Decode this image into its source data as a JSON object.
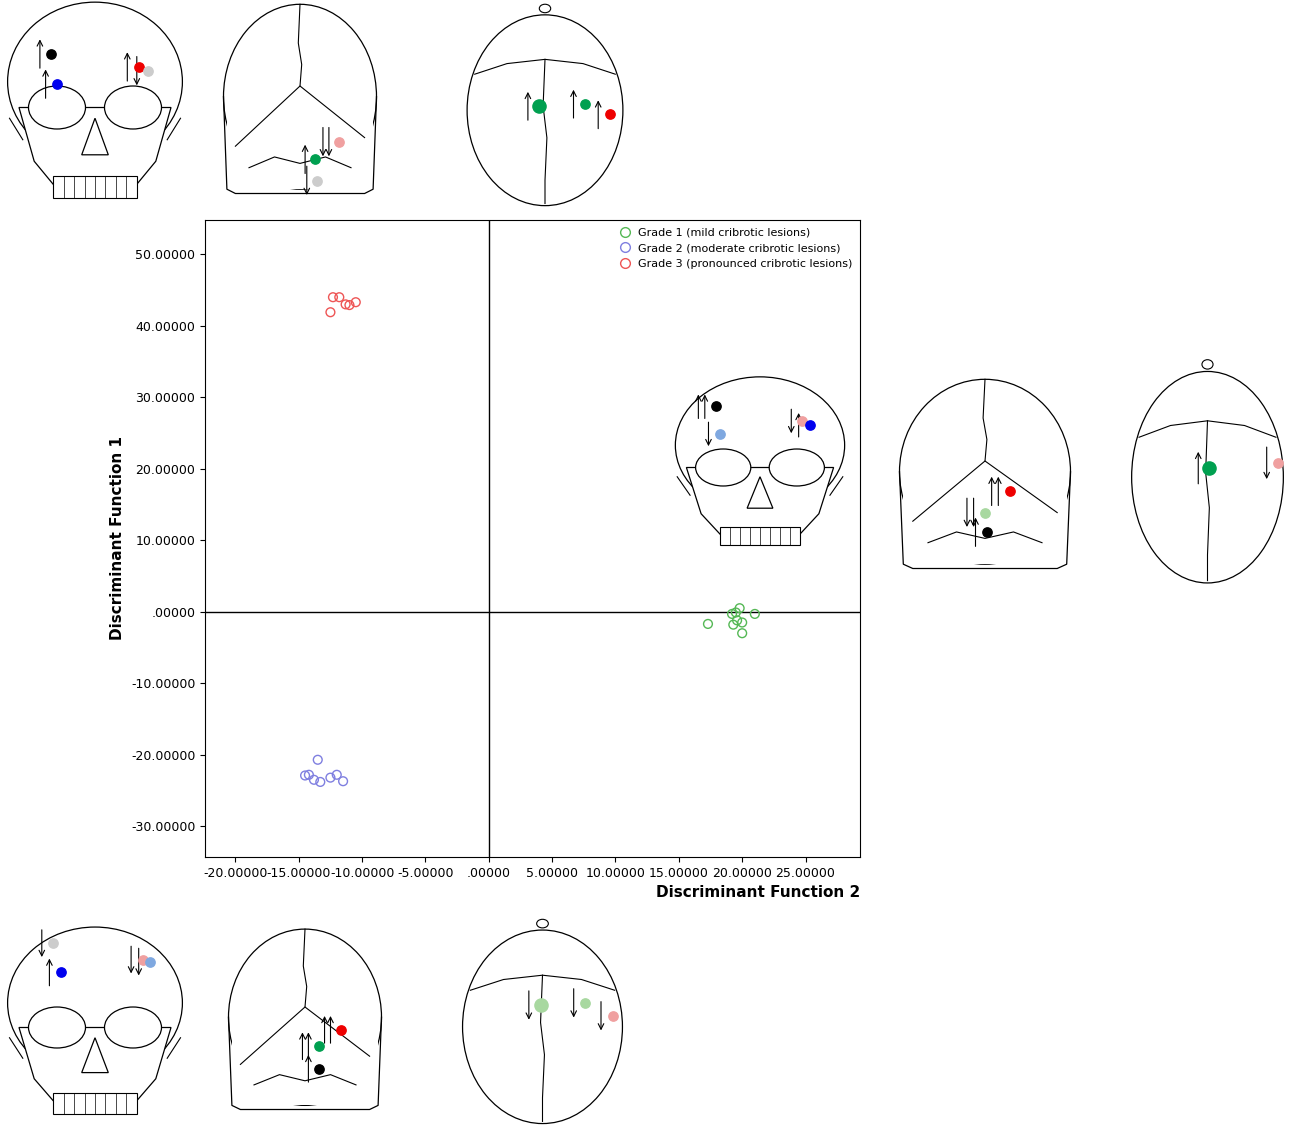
{
  "chart_data": {
    "type": "scatter",
    "xlabel": "Discriminant Function 2",
    "ylabel": "Discriminant Function 1",
    "xlim": [
      -22.4,
      29.3
    ],
    "ylim": [
      -34.3,
      54.8
    ],
    "xticks": [
      {
        "value": -20,
        "label": "-20.00000"
      },
      {
        "value": -15,
        "label": "-15.00000"
      },
      {
        "value": -10,
        "label": "-10.00000"
      },
      {
        "value": -5,
        "label": "-5.00000"
      },
      {
        "value": 0,
        "label": ".00000"
      },
      {
        "value": 5,
        "label": "5.00000"
      },
      {
        "value": 10,
        "label": "10.00000"
      },
      {
        "value": 15,
        "label": "15.00000"
      },
      {
        "value": 20,
        "label": "20.00000"
      },
      {
        "value": 25,
        "label": "25.00000"
      }
    ],
    "yticks": [
      {
        "value": -30,
        "label": "-30.00000"
      },
      {
        "value": -20,
        "label": "-20.00000"
      },
      {
        "value": -10,
        "label": "-10.00000"
      },
      {
        "value": 0,
        "label": ".00000"
      },
      {
        "value": 10,
        "label": "10.00000"
      },
      {
        "value": 20,
        "label": "20.00000"
      },
      {
        "value": 30,
        "label": "30.00000"
      },
      {
        "value": 40,
        "label": "40.00000"
      },
      {
        "value": 50,
        "label": "50.00000"
      }
    ],
    "legend": "upper right",
    "marker": "o",
    "series": [
      {
        "name": "Grade 1 (mild cribrotic lesions)",
        "color": "#55b855",
        "x": [
          19.8,
          19.2,
          19.5,
          19.6,
          19.3,
          20.0,
          21.0,
          17.3,
          20.0
        ],
        "values": [
          0.5,
          -0.3,
          -0.1,
          -1.2,
          -1.8,
          -1.5,
          -0.3,
          -1.7,
          -3.0
        ]
      },
      {
        "name": "Grade 2 (moderate cribrotic lesions)",
        "color": "#7f7fe0",
        "x": [
          -14.5,
          -14.2,
          -13.8,
          -13.3,
          -12.5,
          -12.0,
          -11.5,
          -13.5
        ],
        "values": [
          -22.9,
          -22.8,
          -23.5,
          -23.8,
          -23.2,
          -22.8,
          -23.7,
          -20.7
        ]
      },
      {
        "name": "Grade 3 (pronounced cribrotic lesions)",
        "color": "#ee5555",
        "x": [
          -12.3,
          -11.8,
          -11.3,
          -11.0,
          -10.5,
          -12.5
        ],
        "values": [
          44.0,
          44.0,
          43.0,
          42.9,
          43.3,
          41.9
        ]
      }
    ]
  }
}
